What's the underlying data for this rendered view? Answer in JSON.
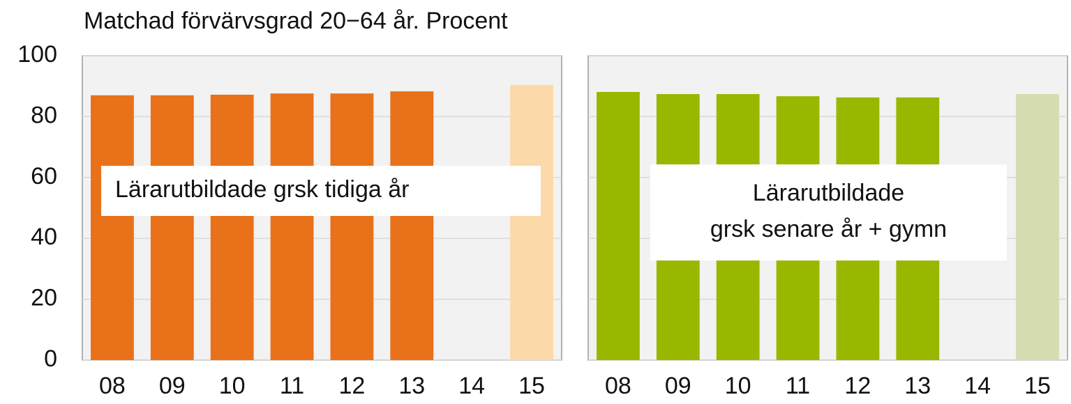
{
  "chart_data": [
    {
      "type": "bar",
      "title": "Matchad förvärvsgrad 20−64 år. Procent",
      "categories": [
        "08",
        "09",
        "10",
        "11",
        "12",
        "13",
        "14",
        "15"
      ],
      "values": [
        87.0,
        87.0,
        87.2,
        87.6,
        87.6,
        88.3,
        null,
        90.4
      ],
      "colors": [
        "#e8711a",
        "#e8711a",
        "#e8711a",
        "#e8711a",
        "#e8711a",
        "#e8711a",
        "#e8711a",
        "#fcd9a8"
      ],
      "annotation": [
        "Lärarutbildade grsk tidiga år"
      ],
      "ylim": [
        0,
        100
      ],
      "yticks": [
        0,
        20,
        40,
        60,
        80,
        100
      ],
      "grid": true
    },
    {
      "type": "bar",
      "categories": [
        "08",
        "09",
        "10",
        "11",
        "12",
        "13",
        "14",
        "15"
      ],
      "values": [
        88.1,
        87.4,
        87.4,
        86.7,
        86.3,
        86.3,
        null,
        87.4
      ],
      "colors": [
        "#98b800",
        "#98b800",
        "#98b800",
        "#98b800",
        "#98b800",
        "#98b800",
        "#98b800",
        "#d5dcb0"
      ],
      "annotation": [
        "Lärarutbildade",
        "grsk senare år + gymn"
      ],
      "ylim": [
        0,
        100
      ],
      "yticks": [
        0,
        20,
        40,
        60,
        80,
        100
      ],
      "grid": true
    }
  ]
}
